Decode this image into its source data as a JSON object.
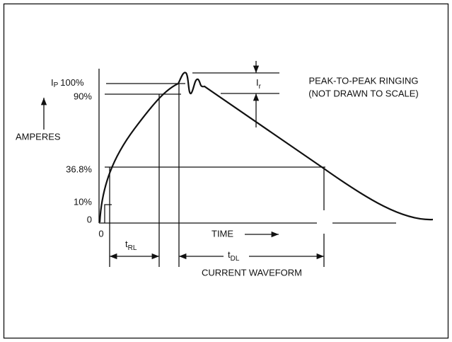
{
  "y_labels": {
    "peak_symbol": "I",
    "peak_sub": "P",
    "peak": "100%",
    "p90": "90%",
    "p36": "36.8%",
    "p10": "10%",
    "zero": "0"
  },
  "y_axis_label": "AMPERES",
  "x_origin": "0",
  "t_rl": {
    "symbol": "t",
    "sub": "RL"
  },
  "t_dl": {
    "symbol": "t",
    "sub": "DL"
  },
  "time_label": "TIME",
  "caption": "CURRENT WAVEFORM",
  "ringing": {
    "symbol": "I",
    "sub": "r",
    "line1": "PEAK-TO-PEAK RINGING",
    "line2": "(NOT DRAWN TO SCALE)"
  }
}
